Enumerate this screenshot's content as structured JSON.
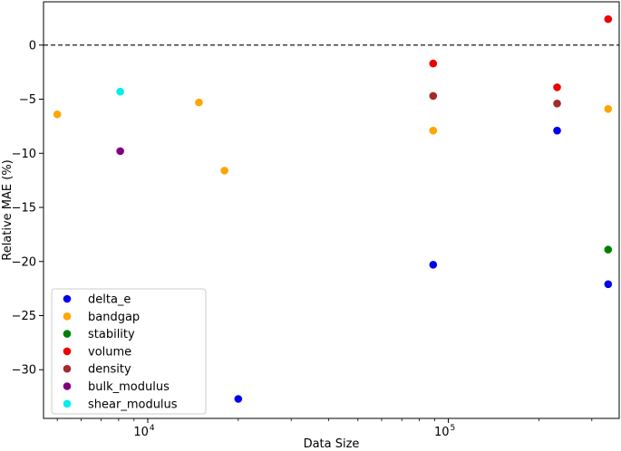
{
  "chart_data": {
    "type": "scatter",
    "title": "",
    "xlabel": "Data Size",
    "ylabel": "Relative MAE (%)",
    "xscale": "log",
    "xlim": [
      4500,
      370000
    ],
    "ylim": [
      -34.5,
      4
    ],
    "grid": false,
    "legend_position": "lower-left",
    "reference_line": {
      "y": 0,
      "style": "dashed",
      "color": "#000000"
    },
    "x_major_ticks": [
      {
        "value": 10000,
        "base": "10",
        "exp": "4"
      },
      {
        "value": 100000,
        "base": "10",
        "exp": "5"
      }
    ],
    "y_ticks": [
      0,
      -5,
      -10,
      -15,
      -20,
      -25,
      -30
    ],
    "series": [
      {
        "name": "delta_e",
        "color": "#0000ee",
        "points": [
          [
            20000,
            -32.7
          ],
          [
            89000,
            -20.3
          ],
          [
            230000,
            -7.9
          ],
          [
            340000,
            -22.1
          ]
        ]
      },
      {
        "name": "bandgap",
        "color": "#ffa500",
        "points": [
          [
            5000,
            -6.4
          ],
          [
            14800,
            -5.3
          ],
          [
            18000,
            -11.6
          ],
          [
            89000,
            -7.9
          ],
          [
            340000,
            -5.9
          ]
        ]
      },
      {
        "name": "stability",
        "color": "#008000",
        "points": [
          [
            340000,
            -18.9
          ]
        ]
      },
      {
        "name": "volume",
        "color": "#ee0000",
        "points": [
          [
            89000,
            -1.7
          ],
          [
            230000,
            -3.9
          ],
          [
            340000,
            2.4
          ]
        ]
      },
      {
        "name": "density",
        "color": "#a52a2a",
        "points": [
          [
            89000,
            -4.7
          ],
          [
            230000,
            -5.4
          ]
        ]
      },
      {
        "name": "bulk_modulus",
        "color": "#800080",
        "points": [
          [
            8100,
            -9.8
          ]
        ]
      },
      {
        "name": "shear_modulus",
        "color": "#00eeee",
        "points": [
          [
            8100,
            -4.3
          ]
        ]
      }
    ]
  }
}
